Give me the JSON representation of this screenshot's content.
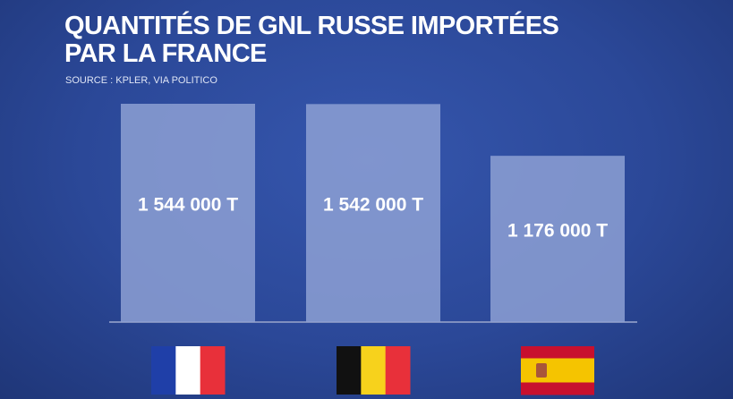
{
  "chart_data": {
    "type": "bar",
    "title": "QUANTITÉS DE GNL RUSSE IMPORTÉES PAR LA FRANCE",
    "subtitle": "SOURCE : KPLER, VIA POLITICO",
    "categories": [
      null,
      null,
      null
    ],
    "values": [
      1544000,
      1542000,
      1176000
    ],
    "value_labels": [
      "1 544 000 T",
      "1 542 000 T",
      "1 176 000 T"
    ],
    "color": "#8da0d4"
  }
}
